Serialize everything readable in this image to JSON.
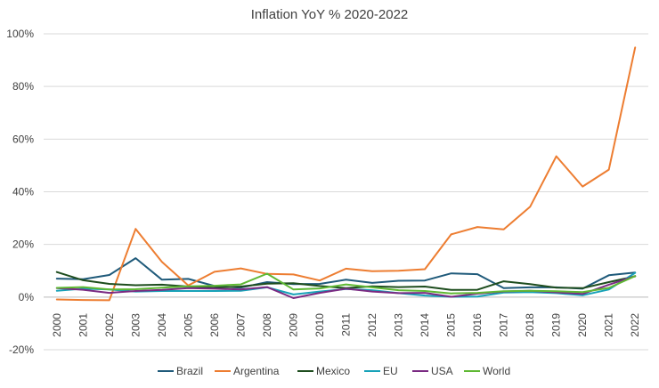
{
  "chart_data": {
    "type": "line",
    "title": "Inflation YoY % 2020-2022",
    "xlabel": "",
    "ylabel": "",
    "ylim": [
      -20,
      100
    ],
    "yticks": [
      -20,
      0,
      20,
      40,
      60,
      80,
      100
    ],
    "ytick_labels": [
      "-20%",
      "0%",
      "20%",
      "40%",
      "60%",
      "80%",
      "100%"
    ],
    "grid": true,
    "legend_position": "bottom",
    "categories": [
      "2000",
      "2001",
      "2002",
      "2003",
      "2004",
      "2005",
      "2006",
      "2007",
      "2008",
      "2009",
      "2010",
      "2011",
      "2012",
      "2013",
      "2014",
      "2015",
      "2016",
      "2017",
      "2018",
      "2019",
      "2020",
      "2021",
      "2022"
    ],
    "series": [
      {
        "name": "Brazil",
        "color": "#1f5a7a",
        "values": [
          7.0,
          6.8,
          8.4,
          14.8,
          6.6,
          6.9,
          4.2,
          3.6,
          5.7,
          4.9,
          5.0,
          6.6,
          5.4,
          6.2,
          6.3,
          9.0,
          8.7,
          3.4,
          3.7,
          3.7,
          3.2,
          8.3,
          9.3
        ]
      },
      {
        "name": "Argentina",
        "color": "#ed7d31",
        "values": [
          -0.9,
          -1.1,
          -1.2,
          25.9,
          13.4,
          4.4,
          9.6,
          10.9,
          8.8,
          8.6,
          6.3,
          10.8,
          9.8,
          10.0,
          10.6,
          23.8,
          26.6,
          25.7,
          34.3,
          53.5,
          42.0,
          48.4,
          94.8
        ]
      },
      {
        "name": "Mexico",
        "color": "#1e4d1e",
        "values": [
          9.5,
          6.4,
          5.0,
          4.5,
          4.7,
          4.0,
          3.6,
          4.0,
          5.1,
          5.3,
          4.2,
          3.4,
          4.1,
          3.8,
          4.0,
          2.7,
          2.8,
          6.0,
          4.9,
          3.6,
          3.4,
          5.7,
          7.9
        ]
      },
      {
        "name": "EU",
        "color": "#17a2b8",
        "values": [
          2.4,
          3.2,
          2.9,
          2.1,
          2.3,
          2.3,
          2.3,
          2.4,
          3.7,
          1.0,
          2.1,
          3.1,
          2.6,
          1.5,
          0.6,
          0.1,
          0.2,
          1.7,
          1.9,
          1.5,
          0.7,
          2.9,
          9.2
        ]
      },
      {
        "name": "USA",
        "color": "#7a2a82",
        "values": [
          3.4,
          2.8,
          1.6,
          2.3,
          2.7,
          3.4,
          3.2,
          2.9,
          3.8,
          -0.4,
          1.6,
          3.2,
          2.1,
          1.5,
          1.6,
          0.1,
          1.3,
          2.1,
          2.4,
          1.8,
          1.2,
          4.7,
          8.0
        ]
      },
      {
        "name": "World",
        "color": "#5fb833",
        "values": [
          3.5,
          3.8,
          2.9,
          3.0,
          3.6,
          4.1,
          4.3,
          4.8,
          8.9,
          2.9,
          3.3,
          4.8,
          3.7,
          2.6,
          2.3,
          1.4,
          1.6,
          2.2,
          2.4,
          2.2,
          1.9,
          3.5,
          8.0
        ]
      }
    ]
  }
}
